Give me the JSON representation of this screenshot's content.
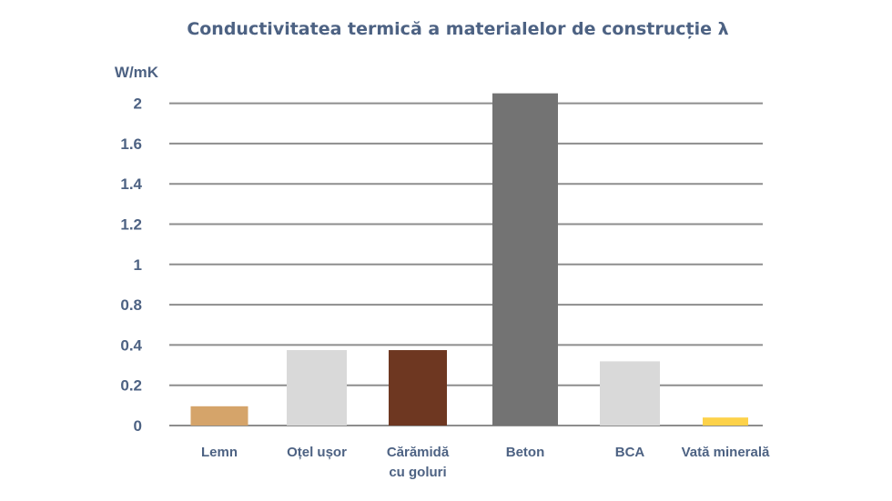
{
  "chart_data": {
    "type": "bar",
    "title": "Conductivitatea termică a materialelor de construcție λ",
    "ylabel": "W/mK",
    "xlabel": "",
    "categories": [
      [
        "Lemn"
      ],
      [
        "Oțel ușor"
      ],
      [
        "Cărămidă",
        "cu goluri"
      ],
      [
        "Beton"
      ],
      [
        "BCA"
      ],
      [
        "Vată minerală"
      ]
    ],
    "values": [
      0.12,
      0.47,
      0.47,
      2.07,
      0.4,
      0.05
    ],
    "yticks": [
      "0",
      "0.2",
      "0.4",
      "0.8",
      "1",
      "1.2",
      "1.4",
      "1.6",
      "2"
    ],
    "ylim": [
      0,
      2
    ],
    "grid": true,
    "colors": [
      "#d5a46a",
      "#d9d9d9",
      "#6e3721",
      "#737373",
      "#d9d9d9",
      "#fdd24a"
    ]
  }
}
